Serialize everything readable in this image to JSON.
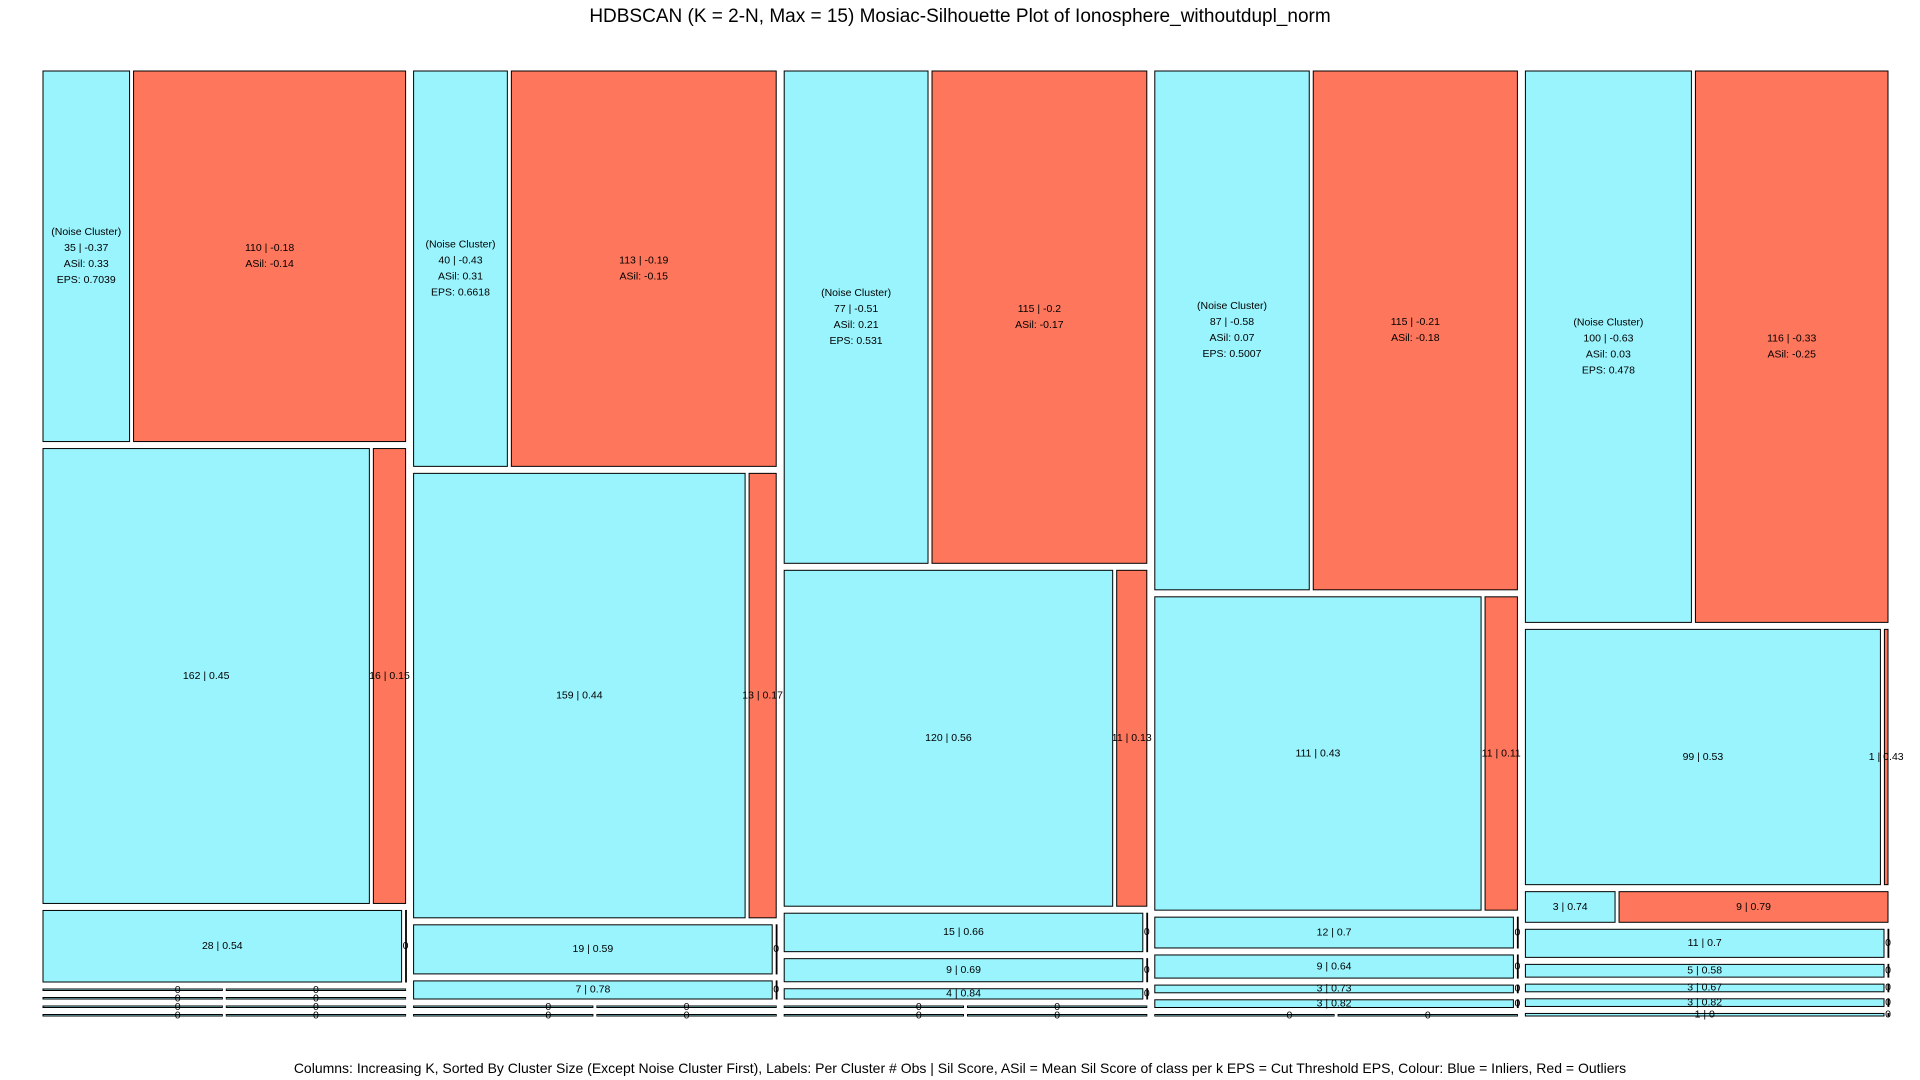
{
  "title": "HDBSCAN (K = 2-N, Max = 15) Mosiac-Silhouette Plot of Ionosphere_withoutdupl_norm",
  "caption": "Columns: Increasing K, Sorted By Cluster Size (Except Noise Cluster First), Labels: Per Cluster # Obs | Sil Score, ASil = Mean Sil Score of class per k EPS = Cut Threshold EPS, Colour: Blue = Inliers, Red = Outliers",
  "colors": {
    "inlier": "#9AF4FD",
    "outlier": "#FE765B",
    "border": "#000000",
    "background": "#FFFFFF"
  },
  "chart_data": {
    "type": "mosaic",
    "legend": {
      "inlier": "Blue = Inliers",
      "outlier": "Red = Outliers"
    },
    "columns": [
      {
        "clusters": [
          {
            "lines": [
              "(Noise Cluster)",
              "",
              "ASil: 0.33",
              "EPS: 0.7039"
            ],
            "in": 35,
            "out": 110,
            "in_label": "35 | -0.37",
            "out_lines": [
              "110 | -0.18",
              "ASil: -0.14"
            ]
          },
          {
            "in": 162,
            "out": 16,
            "in_label": "162 | 0.45",
            "out_label": "16 | 0.15"
          },
          {
            "in": 28,
            "out": 0,
            "in_label": "28 | 0.54",
            "out_label": "0"
          },
          {
            "in": 0,
            "out": 0,
            "zero": [
              "0",
              "0"
            ]
          },
          {
            "in": 0,
            "out": 0,
            "zero": [
              "0",
              "0"
            ]
          },
          {
            "in": 0,
            "out": 0,
            "zero": [
              "0",
              "0"
            ]
          },
          {
            "in": 0,
            "out": 0,
            "zero": [
              "0",
              "0"
            ]
          }
        ]
      },
      {
        "clusters": [
          {
            "lines": [
              "(Noise Cluster)",
              "",
              "ASil: 0.31",
              "EPS: 0.6618"
            ],
            "in": 40,
            "out": 113,
            "in_label": "40 | -0.43",
            "out_lines": [
              "113 | -0.19",
              "ASil: -0.15"
            ]
          },
          {
            "in": 159,
            "out": 13,
            "in_label": "159 | 0.44",
            "out_label": "13 | 0.17"
          },
          {
            "in": 19,
            "out": 0,
            "in_label": "19 | 0.59",
            "out_label": "0"
          },
          {
            "in": 7,
            "out": 0,
            "in_label": "7 | 0.78",
            "out_label": "0"
          },
          {
            "in": 0,
            "out": 0,
            "zero": [
              "0",
              "0"
            ]
          },
          {
            "in": 0,
            "out": 0,
            "zero": [
              "0",
              "0"
            ]
          }
        ]
      },
      {
        "clusters": [
          {
            "lines": [
              "(Noise Cluster)",
              "",
              "ASil: 0.21",
              "EPS: 0.531"
            ],
            "in": 77,
            "out": 115,
            "in_label": "77 | -0.51",
            "out_lines": [
              "115 | -0.2",
              "ASil: -0.17"
            ]
          },
          {
            "in": 120,
            "out": 11,
            "in_label": "120 | 0.56",
            "out_label": "11 | 0.13"
          },
          {
            "in": 15,
            "out": 0,
            "in_label": "15 | 0.66",
            "out_label": "0"
          },
          {
            "in": 9,
            "out": 0,
            "in_label": "9 | 0.69",
            "out_label": "0"
          },
          {
            "in": 4,
            "out": 0,
            "in_label": "4 | 0.84",
            "out_label": "0"
          },
          {
            "in": 0,
            "out": 0,
            "zero": [
              "0",
              "0"
            ]
          },
          {
            "in": 0,
            "out": 0,
            "zero": [
              "0",
              "0"
            ]
          }
        ]
      },
      {
        "clusters": [
          {
            "lines": [
              "(Noise Cluster)",
              "",
              "ASil: 0.07",
              "EPS: 0.5007"
            ],
            "in": 87,
            "out": 115,
            "in_label": "87 | -0.58",
            "out_lines": [
              "115 | -0.21",
              "ASil: -0.18"
            ]
          },
          {
            "in": 111,
            "out": 11,
            "in_label": "111 | 0.43",
            "out_label": "11 | 0.11"
          },
          {
            "in": 12,
            "out": 0,
            "in_label": "12 | 0.7",
            "out_label": "0"
          },
          {
            "in": 9,
            "out": 0,
            "in_label": "9 | 0.64",
            "out_label": "0"
          },
          {
            "in": 3,
            "out": 0,
            "in_label": "3 | 0.73",
            "out_label": "0"
          },
          {
            "in": 3,
            "out": 0,
            "in_label": "3 | 0.82",
            "out_label": "0"
          },
          {
            "in": 0,
            "out": 0,
            "zero": [
              "0",
              "0"
            ]
          }
        ]
      },
      {
        "clusters": [
          {
            "lines": [
              "(Noise Cluster)",
              "",
              "ASil: 0.03",
              "EPS: 0.478"
            ],
            "in": 100,
            "out": 116,
            "in_label": "100 | -0.63",
            "out_lines": [
              "116 | -0.33",
              "ASil: -0.25"
            ]
          },
          {
            "in": 99,
            "out": 1,
            "in_label": "99 | 0.53",
            "out_label": "1 | 0.43"
          },
          {
            "in": 3,
            "out": 9,
            "in_label": "3 | 0.74",
            "out_label": "9 | 0.79"
          },
          {
            "in": 11,
            "out": 0,
            "in_label": "11 | 0.7",
            "out_label": "0"
          },
          {
            "in": 5,
            "out": 0,
            "in_label": "5 | 0.58",
            "out_label": "0"
          },
          {
            "in": 3,
            "out": 0,
            "in_label": "3 | 0.67",
            "out_label": "0"
          },
          {
            "in": 3,
            "out": 0,
            "in_label": "3 | 0.82",
            "out_label": "0"
          },
          {
            "in": 1,
            "out": 0,
            "in_label": "1 | 0",
            "out_label": "0"
          }
        ]
      }
    ]
  }
}
